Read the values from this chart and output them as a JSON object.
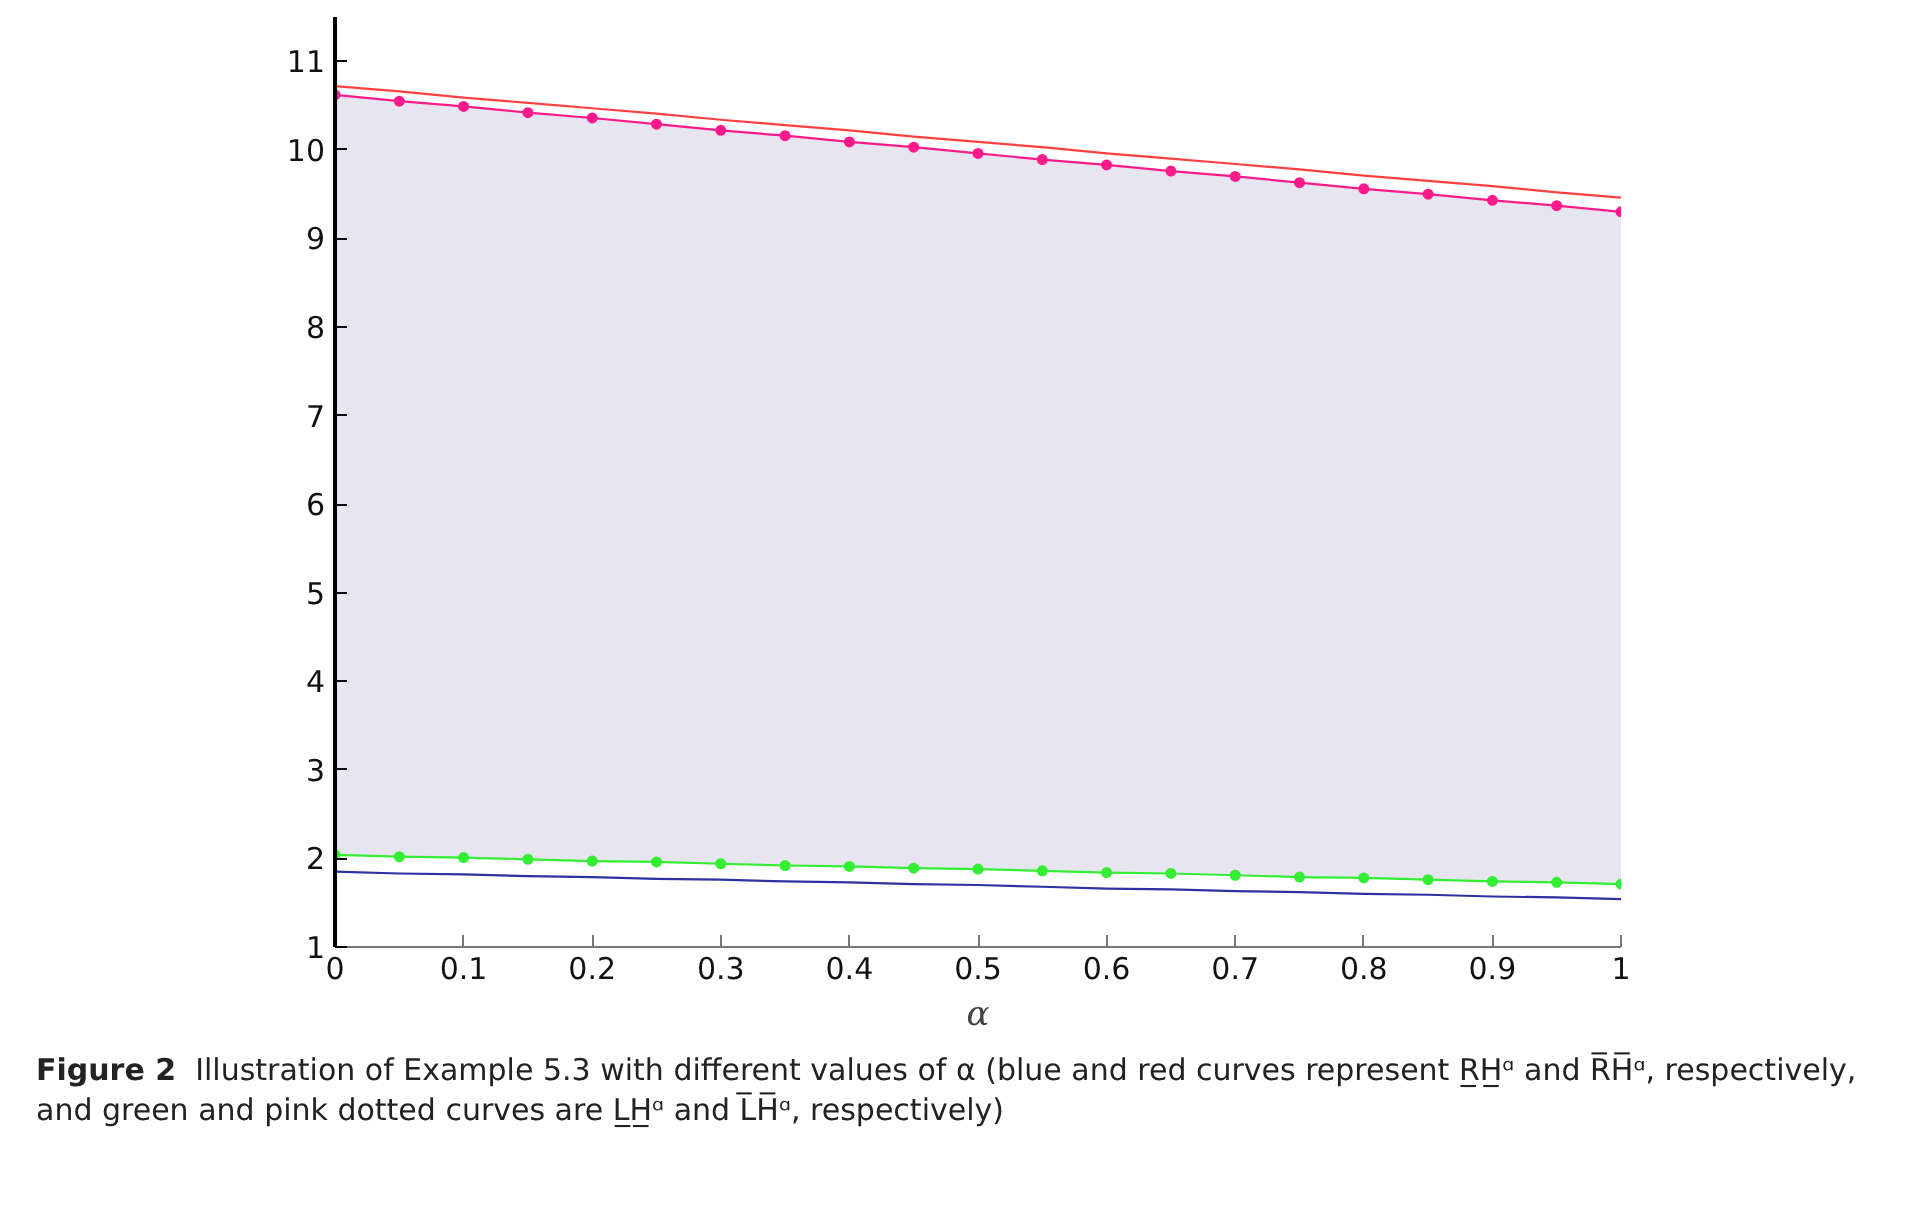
{
  "chart_data": {
    "type": "line",
    "title": "Figure 2",
    "xlabel": "α",
    "annotations": [
      "Illustration of Example 5.3 with different values of α (blue and red curves represent R̲H̲ᵅ and R̅H̅ᵅ, respectively, and green and pink dotted curves are L̲H̲ᵅ and L̅H̅ᵅ, respectively)"
    ],
    "xlim": [
      0,
      1
    ],
    "ylim": [
      1,
      11.5
    ],
    "xticks": [
      0,
      0.1,
      0.2,
      0.3,
      0.4,
      0.5,
      0.6,
      0.7,
      0.8,
      0.9,
      1
    ],
    "yticks": [
      1,
      2,
      3,
      4,
      5,
      6,
      7,
      8,
      9,
      10,
      11
    ],
    "grid": false,
    "x": [
      0,
      0.05,
      0.1,
      0.15,
      0.2,
      0.25,
      0.3,
      0.35,
      0.4,
      0.45,
      0.5,
      0.55,
      0.6,
      0.65,
      0.7,
      0.75,
      0.8,
      0.85,
      0.9,
      0.95,
      1
    ],
    "series": [
      {
        "color": "#ff4040",
        "marker": "none",
        "values": [
          10.72,
          10.66,
          10.59,
          10.53,
          10.47,
          10.41,
          10.34,
          10.28,
          10.22,
          10.15,
          10.09,
          10.03,
          9.96,
          9.9,
          9.84,
          9.78,
          9.71,
          9.65,
          9.59,
          9.52,
          9.46
        ]
      },
      {
        "color": "#3030a0",
        "marker": "none",
        "values": [
          1.85,
          1.83,
          1.82,
          1.8,
          1.79,
          1.77,
          1.76,
          1.74,
          1.73,
          1.71,
          1.7,
          1.68,
          1.66,
          1.65,
          1.63,
          1.62,
          1.6,
          1.59,
          1.57,
          1.56,
          1.54
        ]
      },
      {
        "color": "#33ee33",
        "marker": "circle",
        "values": [
          2.04,
          2.02,
          2.01,
          1.99,
          1.97,
          1.96,
          1.94,
          1.92,
          1.91,
          1.89,
          1.88,
          1.86,
          1.84,
          1.83,
          1.81,
          1.79,
          1.78,
          1.76,
          1.74,
          1.73,
          1.71
        ]
      },
      {
        "color": "#ff1a8c",
        "marker": "circle",
        "values": [
          10.62,
          10.55,
          10.49,
          10.42,
          10.36,
          10.29,
          10.22,
          10.16,
          10.09,
          10.03,
          9.96,
          9.89,
          9.83,
          9.76,
          9.7,
          9.63,
          9.56,
          9.5,
          9.43,
          9.37,
          9.3
        ],
        "lower": [
          2.04,
          2.02,
          2.01,
          1.99,
          1.97,
          1.96,
          1.94,
          1.92,
          1.91,
          1.89,
          1.88,
          1.86,
          1.84,
          1.83,
          1.81,
          1.79,
          1.78,
          1.76,
          1.74,
          1.73,
          1.71
        ],
        "upper": [
          10.62,
          10.55,
          10.49,
          10.42,
          10.36,
          10.29,
          10.22,
          10.16,
          10.09,
          10.03,
          9.96,
          9.89,
          9.83,
          9.76,
          9.7,
          9.63,
          9.56,
          9.5,
          9.43,
          9.37,
          9.3
        ]
      }
    ]
  }
}
